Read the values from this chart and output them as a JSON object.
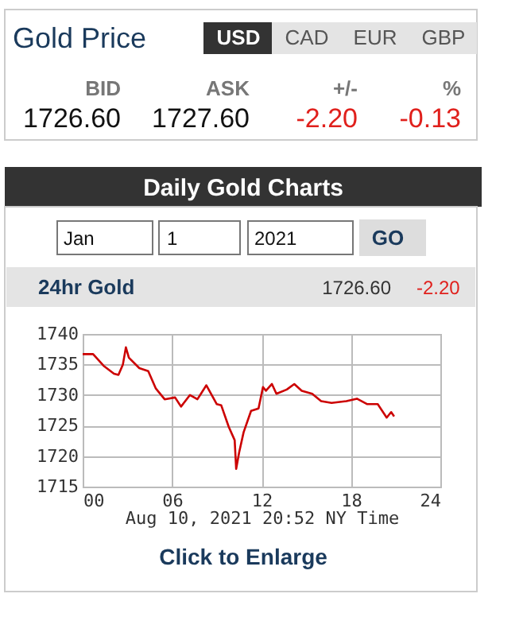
{
  "chart_data": {
    "type": "line",
    "title": "24hr Gold",
    "xlabel": "Aug 10, 2021 20:52 NY Time",
    "x": [
      0,
      0.7,
      1.4,
      2.1,
      2.4,
      2.7,
      2.9,
      3.1,
      3.8,
      4.4,
      4.9,
      5.5,
      6.2,
      6.6,
      7.2,
      7.7,
      8.3,
      9.0,
      9.3,
      9.8,
      10.2,
      10.3,
      10.5,
      10.8,
      11.3,
      11.8,
      12.1,
      12.3,
      12.7,
      13.0,
      13.7,
      14.2,
      14.7,
      15.4,
      16.0,
      16.7,
      17.7,
      18.4,
      19.1,
      19.8,
      20.4,
      20.7,
      20.9
    ],
    "series": [
      {
        "color": "#cc0000",
        "values": [
          1736.7,
          1736.7,
          1734.8,
          1733.5,
          1733.3,
          1735.0,
          1737.8,
          1736.1,
          1734.4,
          1733.9,
          1731.1,
          1729.3,
          1729.6,
          1728.1,
          1730.0,
          1729.3,
          1731.6,
          1728.5,
          1728.3,
          1724.8,
          1722.6,
          1717.9,
          1720.6,
          1723.9,
          1727.4,
          1727.8,
          1731.3,
          1730.7,
          1731.8,
          1730.2,
          1730.9,
          1731.8,
          1730.7,
          1730.2,
          1729.0,
          1728.7,
          1729.0,
          1729.4,
          1728.5,
          1728.5,
          1726.3,
          1727.2,
          1726.5
        ]
      }
    ],
    "xlim": [
      0,
      24
    ],
    "xticks": [
      {
        "value": 0,
        "label": "00"
      },
      {
        "value": 6,
        "label": "06"
      },
      {
        "value": 12,
        "label": "12"
      },
      {
        "value": 18,
        "label": "18"
      },
      {
        "value": 24,
        "label": "24"
      }
    ],
    "ylim": [
      1715,
      1740
    ],
    "yticks": [
      1715,
      1720,
      1725,
      1730,
      1735,
      1740
    ],
    "grid": true,
    "annotations": [
      "Gold Price",
      "USD",
      "CAD",
      "EUR",
      "GBP",
      "BID",
      "ASK",
      "+/-",
      "%",
      "1726.60",
      "1727.60",
      "-2.20",
      "-0.13",
      "Daily Gold Charts",
      "Jan",
      "1",
      "2021",
      "GO",
      "1726.60",
      "-2.20",
      "Click to Enlarge"
    ]
  }
}
